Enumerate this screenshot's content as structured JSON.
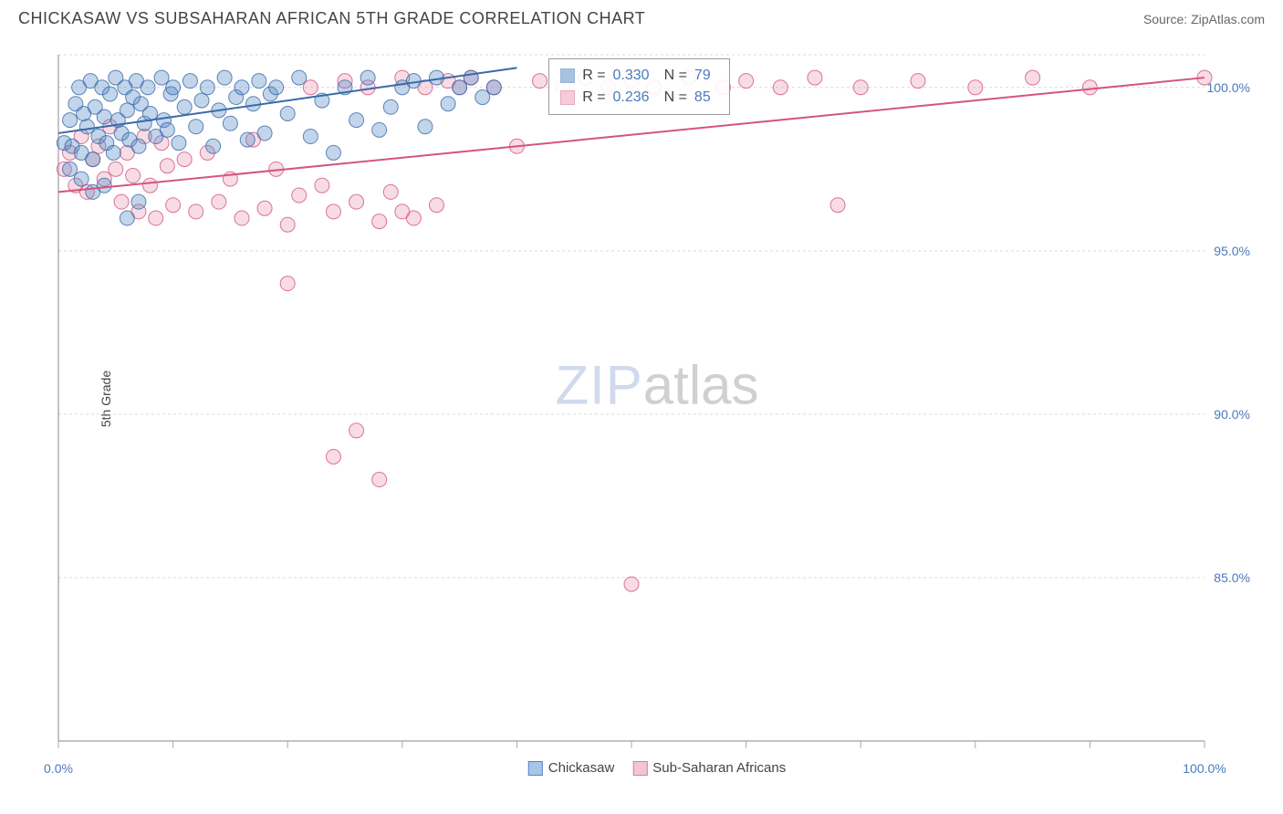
{
  "header": {
    "title": "CHICKASAW VS SUBSAHARAN AFRICAN 5TH GRADE CORRELATION CHART",
    "source": "Source: ZipAtlas.com"
  },
  "watermark": {
    "part1": "ZIP",
    "part2": "atlas"
  },
  "chart": {
    "type": "scatter",
    "y_axis_label": "5th Grade",
    "background_color": "#ffffff",
    "grid_color": "#d9d9d9",
    "axis_color": "#888888",
    "tick_color": "#aaaaaa",
    "label_color": "#4a7abc",
    "xlim": [
      0,
      100
    ],
    "ylim": [
      80,
      101
    ],
    "x_ticks": [
      0,
      10,
      20,
      30,
      40,
      50,
      60,
      70,
      80,
      90,
      100
    ],
    "x_tick_labels_shown": {
      "0": "0.0%",
      "100": "100.0%"
    },
    "y_ticks": [
      85,
      90,
      95,
      100
    ],
    "y_tick_labels": {
      "85": "85.0%",
      "90": "90.0%",
      "95": "95.0%",
      "100": "100.0%"
    },
    "marker_radius": 8,
    "marker_fill_opacity": 0.35,
    "marker_stroke_opacity": 0.8,
    "line_width": 2,
    "series": [
      {
        "name": "Chickasaw",
        "color": "#4f86c6",
        "stroke": "#3a6aa8",
        "R": "0.330",
        "N": "79",
        "trend": {
          "x1": 0,
          "y1": 98.6,
          "x2": 40,
          "y2": 100.6
        },
        "points": [
          [
            0.5,
            98.3
          ],
          [
            1,
            99.0
          ],
          [
            1.2,
            98.2
          ],
          [
            1.5,
            99.5
          ],
          [
            1.8,
            100.0
          ],
          [
            2,
            98.0
          ],
          [
            2.2,
            99.2
          ],
          [
            2.5,
            98.8
          ],
          [
            2.8,
            100.2
          ],
          [
            3,
            97.8
          ],
          [
            3.2,
            99.4
          ],
          [
            3.5,
            98.5
          ],
          [
            3.8,
            100.0
          ],
          [
            4,
            99.1
          ],
          [
            4.2,
            98.3
          ],
          [
            4.5,
            99.8
          ],
          [
            4.8,
            98.0
          ],
          [
            5,
            100.3
          ],
          [
            5.2,
            99.0
          ],
          [
            5.5,
            98.6
          ],
          [
            5.8,
            100.0
          ],
          [
            6,
            99.3
          ],
          [
            6.2,
            98.4
          ],
          [
            6.5,
            99.7
          ],
          [
            6.8,
            100.2
          ],
          [
            7,
            98.2
          ],
          [
            7.2,
            99.5
          ],
          [
            7.5,
            98.9
          ],
          [
            7.8,
            100.0
          ],
          [
            8,
            99.2
          ],
          [
            8.5,
            98.5
          ],
          [
            9,
            100.3
          ],
          [
            9.2,
            99.0
          ],
          [
            9.5,
            98.7
          ],
          [
            9.8,
            99.8
          ],
          [
            10,
            100.0
          ],
          [
            10.5,
            98.3
          ],
          [
            11,
            99.4
          ],
          [
            11.5,
            100.2
          ],
          [
            12,
            98.8
          ],
          [
            12.5,
            99.6
          ],
          [
            13,
            100.0
          ],
          [
            13.5,
            98.2
          ],
          [
            14,
            99.3
          ],
          [
            14.5,
            100.3
          ],
          [
            15,
            98.9
          ],
          [
            15.5,
            99.7
          ],
          [
            16,
            100.0
          ],
          [
            16.5,
            98.4
          ],
          [
            17,
            99.5
          ],
          [
            17.5,
            100.2
          ],
          [
            18,
            98.6
          ],
          [
            18.5,
            99.8
          ],
          [
            19,
            100.0
          ],
          [
            20,
            99.2
          ],
          [
            21,
            100.3
          ],
          [
            22,
            98.5
          ],
          [
            23,
            99.6
          ],
          [
            24,
            98.0
          ],
          [
            25,
            100.0
          ],
          [
            26,
            99.0
          ],
          [
            27,
            100.3
          ],
          [
            28,
            98.7
          ],
          [
            29,
            99.4
          ],
          [
            30,
            100.0
          ],
          [
            31,
            100.2
          ],
          [
            32,
            98.8
          ],
          [
            33,
            100.3
          ],
          [
            34,
            99.5
          ],
          [
            35,
            100.0
          ],
          [
            36,
            100.3
          ],
          [
            37,
            99.7
          ],
          [
            38,
            100.0
          ],
          [
            6,
            96.0
          ],
          [
            7,
            96.5
          ],
          [
            4,
            97.0
          ],
          [
            3,
            96.8
          ],
          [
            2,
            97.2
          ],
          [
            1,
            97.5
          ]
        ]
      },
      {
        "name": "Sub-Saharan Africans",
        "color": "#e89cb4",
        "stroke": "#d5537e",
        "R": "0.236",
        "N": "85",
        "trend": {
          "x1": 0,
          "y1": 96.8,
          "x2": 100,
          "y2": 100.3
        },
        "points": [
          [
            0.5,
            97.5
          ],
          [
            1,
            98.0
          ],
          [
            1.5,
            97.0
          ],
          [
            2,
            98.5
          ],
          [
            2.5,
            96.8
          ],
          [
            3,
            97.8
          ],
          [
            3.5,
            98.2
          ],
          [
            4,
            97.2
          ],
          [
            4.5,
            98.8
          ],
          [
            5,
            97.5
          ],
          [
            5.5,
            96.5
          ],
          [
            6,
            98.0
          ],
          [
            6.5,
            97.3
          ],
          [
            7,
            96.2
          ],
          [
            7.5,
            98.5
          ],
          [
            8,
            97.0
          ],
          [
            8.5,
            96.0
          ],
          [
            9,
            98.3
          ],
          [
            9.5,
            97.6
          ],
          [
            10,
            96.4
          ],
          [
            11,
            97.8
          ],
          [
            12,
            96.2
          ],
          [
            13,
            98.0
          ],
          [
            14,
            96.5
          ],
          [
            15,
            97.2
          ],
          [
            16,
            96.0
          ],
          [
            17,
            98.4
          ],
          [
            18,
            96.3
          ],
          [
            19,
            97.5
          ],
          [
            20,
            95.8
          ],
          [
            21,
            96.7
          ],
          [
            22,
            100.0
          ],
          [
            23,
            97.0
          ],
          [
            24,
            96.2
          ],
          [
            25,
            100.2
          ],
          [
            26,
            96.5
          ],
          [
            27,
            100.0
          ],
          [
            28,
            95.9
          ],
          [
            29,
            96.8
          ],
          [
            30,
            100.3
          ],
          [
            31,
            96.0
          ],
          [
            32,
            100.0
          ],
          [
            33,
            96.4
          ],
          [
            34,
            100.2
          ],
          [
            35,
            100.0
          ],
          [
            36,
            100.3
          ],
          [
            38,
            100.0
          ],
          [
            40,
            98.2
          ],
          [
            42,
            100.2
          ],
          [
            44,
            100.0
          ],
          [
            46,
            100.3
          ],
          [
            48,
            100.0
          ],
          [
            50,
            100.2
          ],
          [
            52,
            100.0
          ],
          [
            55,
            100.3
          ],
          [
            58,
            100.0
          ],
          [
            60,
            100.2
          ],
          [
            63,
            100.0
          ],
          [
            66,
            100.3
          ],
          [
            70,
            100.0
          ],
          [
            75,
            100.2
          ],
          [
            80,
            100.0
          ],
          [
            85,
            100.3
          ],
          [
            90,
            100.0
          ],
          [
            100,
            100.3
          ],
          [
            20,
            94.0
          ],
          [
            24,
            88.7
          ],
          [
            26,
            89.5
          ],
          [
            28,
            88.0
          ],
          [
            30,
            96.2
          ],
          [
            68,
            96.4
          ],
          [
            50,
            84.8
          ]
        ]
      }
    ],
    "stats_box": {
      "left_pct": 41,
      "top_pct": 1.5
    },
    "bottom_legend": [
      {
        "label": "Chickasaw",
        "fill": "#a8c5e8",
        "stroke": "#4f86c6"
      },
      {
        "label": "Sub-Saharan Africans",
        "fill": "#f5c4d4",
        "stroke": "#e07a9c"
      }
    ]
  }
}
